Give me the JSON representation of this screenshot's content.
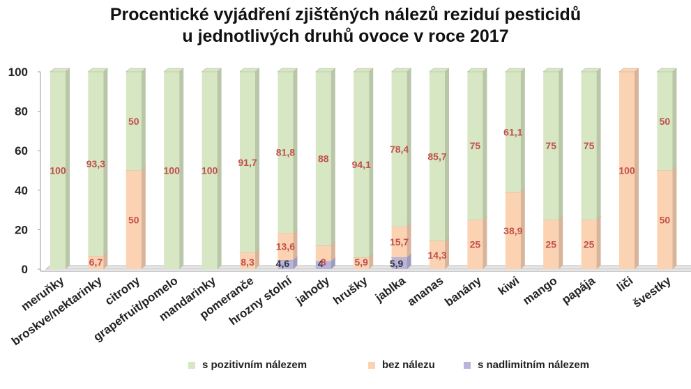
{
  "chart_data": {
    "type": "bar",
    "stacked": true,
    "title": [
      "Procentické vyjádření zjištěných nálezů reziduí pesticidů",
      "u jednotlivých druhů ovoce v roce 2017"
    ],
    "ylim": [
      0,
      100
    ],
    "yticks": [
      "0",
      "20",
      "40",
      "60",
      "80",
      "100"
    ],
    "grid": false,
    "legend_position": "bottom",
    "categories": [
      "meruňky",
      "broskve/nektarinky",
      "citrony",
      "grapefruit/pomelo",
      "mandarinky",
      "pomeranče",
      "hrozny stolní",
      "jahody",
      "hrušky",
      "jablka",
      "ananas",
      "banány",
      "kiwi",
      "mango",
      "papája",
      "liči",
      "švestky"
    ],
    "series": [
      {
        "name": "s nadlimitním nálezem",
        "color": "#b8b4dc",
        "values": [
          0,
          0,
          0,
          0,
          0,
          0,
          4.6,
          4,
          0,
          5.9,
          0,
          0,
          0,
          0,
          0,
          0,
          0
        ],
        "labels": [
          "",
          "",
          "",
          "",
          "",
          "",
          "4,6",
          "4",
          "",
          "5,9",
          "",
          "",
          "",
          "",
          "",
          "",
          ""
        ]
      },
      {
        "name": "bez nálezu",
        "color": "#fbd3b3",
        "values": [
          0,
          6.7,
          50,
          0,
          0,
          8.3,
          13.6,
          8,
          5.9,
          15.7,
          14.3,
          25,
          38.9,
          25,
          25,
          100,
          50
        ],
        "labels": [
          "",
          "6,7",
          "50",
          "",
          "",
          "8,3",
          "13,6",
          "8",
          "5,9",
          "15,7",
          "14,3",
          "25",
          "38,9",
          "25",
          "25",
          "100",
          "50"
        ]
      },
      {
        "name": "s pozitivním nálezem",
        "color": "#d7e6c3",
        "values": [
          100,
          93.3,
          50,
          100,
          100,
          91.7,
          81.8,
          88,
          94.1,
          78.4,
          85.7,
          75,
          61.1,
          75,
          75,
          0,
          50
        ],
        "labels": [
          "100",
          "93,3",
          "50",
          "100",
          "100",
          "91,7",
          "81,8",
          "88",
          "94,1",
          "78,4",
          "85,7",
          "75",
          "61,1",
          "75",
          "75",
          "",
          "50"
        ]
      }
    ],
    "label_color": "#c0504d"
  },
  "legend": [
    {
      "label": "s pozitivním nálezem",
      "color": "#d7e6c3"
    },
    {
      "label": "bez nálezu",
      "color": "#fbd3b3"
    },
    {
      "label": "s nadlimitním nálezem",
      "color": "#b8b4dc"
    }
  ]
}
